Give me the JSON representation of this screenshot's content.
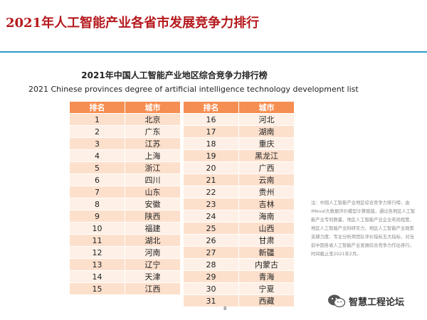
{
  "page_title": "2021年人工智能产业各省市发展竞争力排行",
  "heading_cn": "2021年中国人工智能产业地区综合竞争力排行榜",
  "heading_en": "2021 Chinese provinces degree of artificial intelligence technology development list",
  "table": {
    "headers": [
      "排名",
      "城市"
    ],
    "rows": [
      {
        "rank": "1",
        "city": "北京"
      },
      {
        "rank": "2",
        "city": "广东"
      },
      {
        "rank": "3",
        "city": "江苏"
      },
      {
        "rank": "4",
        "city": "上海"
      },
      {
        "rank": "5",
        "city": "浙江"
      },
      {
        "rank": "6",
        "city": "四川"
      },
      {
        "rank": "7",
        "city": "山东"
      },
      {
        "rank": "8",
        "city": "安徽"
      },
      {
        "rank": "9",
        "city": "陕西"
      },
      {
        "rank": "10",
        "city": "福建"
      },
      {
        "rank": "11",
        "city": "湖北"
      },
      {
        "rank": "12",
        "city": "河南"
      },
      {
        "rank": "13",
        "city": "辽宁"
      },
      {
        "rank": "14",
        "city": "天津"
      },
      {
        "rank": "15",
        "city": "江西"
      },
      {
        "rank": "16",
        "city": "河北"
      },
      {
        "rank": "17",
        "city": "湖南"
      },
      {
        "rank": "18",
        "city": "重庆"
      },
      {
        "rank": "19",
        "city": "黑龙江"
      },
      {
        "rank": "20",
        "city": "广西"
      },
      {
        "rank": "21",
        "city": "云南"
      },
      {
        "rank": "22",
        "city": "贵州"
      },
      {
        "rank": "23",
        "city": "吉林"
      },
      {
        "rank": "24",
        "city": "海南"
      },
      {
        "rank": "25",
        "city": "山西"
      },
      {
        "rank": "26",
        "city": "甘肃"
      },
      {
        "rank": "27",
        "city": "新疆"
      },
      {
        "rank": "28",
        "city": "内蒙古"
      },
      {
        "rank": "29",
        "city": "青海"
      },
      {
        "rank": "30",
        "city": "宁夏"
      },
      {
        "rank": "31",
        "city": "西藏"
      }
    ]
  },
  "note": "注：中国人工智能产业地区综合竞争力排行榜，由iMeval大数据评价模型计算赋值，通过各地区人工智能产业专利数量、地区人工智能产业企业布局程度、地区人工智能产业科研实力、地区人工智能产业政策支撑力度、专业分析师团队评价指标五大指标，对当前中国各省人工智能产业发展综合竞争力作出排行。时间截止至2021年2月。",
  "page_number": "8",
  "brand": {
    "name": "智慧工程论坛",
    "icon": "wechat-icon"
  },
  "colors": {
    "title_red": "#b5191d",
    "rule_blue": "#2f9cc7",
    "header_orange": "#f58e52",
    "row_dark": "#fde0cc",
    "row_light": "#fef0e6"
  }
}
